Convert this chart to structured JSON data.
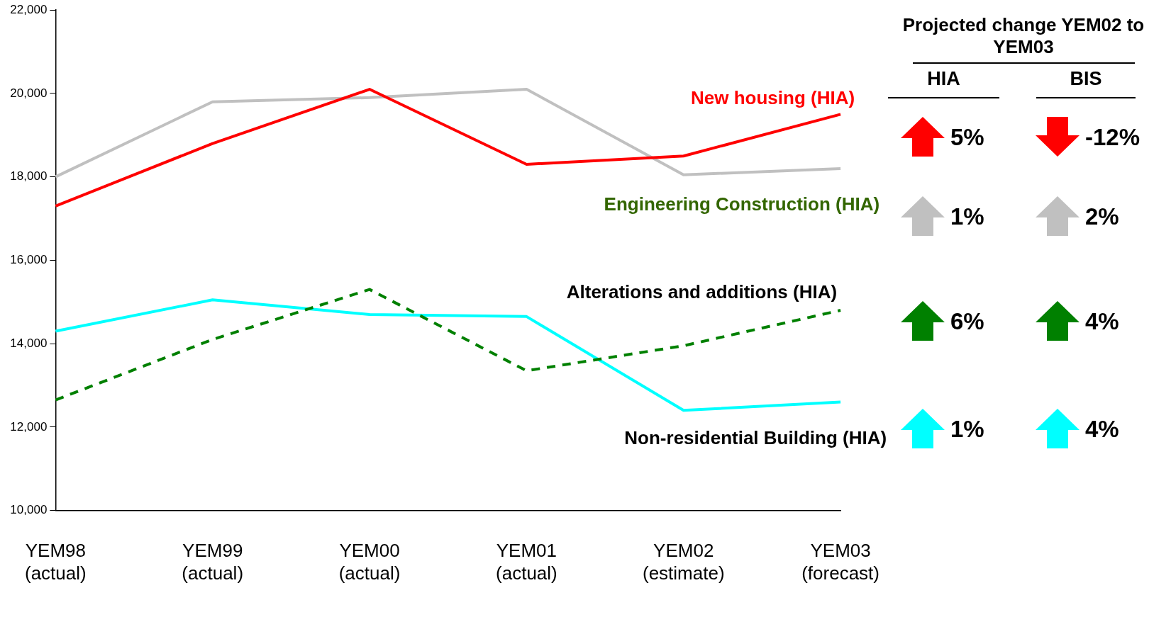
{
  "chart_data": {
    "type": "line",
    "categories": [
      "YEM98 (actual)",
      "YEM99 (actual)",
      "YEM00 (actual)",
      "YEM01 (actual)",
      "YEM02 (estimate)",
      "YEM03 (forecast)"
    ],
    "series": [
      {
        "name": "New housing (HIA)",
        "color": "#ff0000",
        "values": [
          17300,
          18800,
          20100,
          18300,
          18500,
          19500
        ]
      },
      {
        "name": "Engineering Construction (HIA)",
        "color": "#c0c0c0",
        "values": [
          18000,
          19800,
          19900,
          20100,
          18050,
          18200
        ]
      },
      {
        "name": "Alterations and additions (HIA)",
        "color": "#008000",
        "line_style": "dashed",
        "values": [
          12650,
          14100,
          15300,
          13350,
          13950,
          14800
        ]
      },
      {
        "name": "Non-residential Building (HIA)",
        "color": "#00ffff",
        "values": [
          14300,
          15050,
          14700,
          14650,
          12400,
          12600
        ]
      }
    ],
    "ylim": [
      10000,
      22000
    ],
    "yticks": [
      {
        "value": 10000,
        "label": "10,000"
      },
      {
        "value": 12000,
        "label": "12,000"
      },
      {
        "value": 14000,
        "label": "14,000"
      },
      {
        "value": 16000,
        "label": "16,000"
      },
      {
        "value": 18000,
        "label": "18,000"
      },
      {
        "value": 20000,
        "label": "20,000"
      },
      {
        "value": 22000,
        "label": "22,000"
      }
    ],
    "grid": false,
    "legend": "right",
    "marker": "none",
    "annotations": [
      "Projected change YEM02 to YEM03",
      "HIA",
      "BIS",
      "5%",
      "-12%",
      "1%",
      "2%",
      "6%",
      "4%",
      "1%",
      "4%"
    ]
  }
}
